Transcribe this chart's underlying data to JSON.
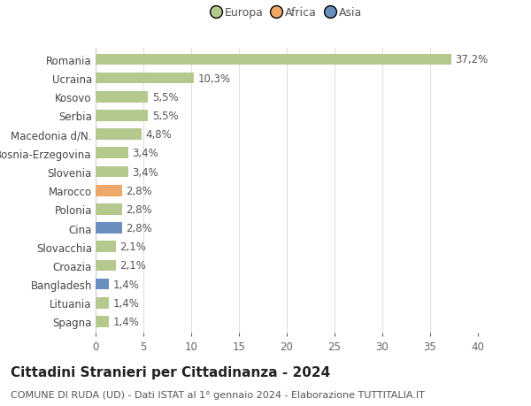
{
  "categories": [
    "Romania",
    "Ucraina",
    "Kosovo",
    "Serbia",
    "Macedonia d/N.",
    "Bosnia-Erzegovina",
    "Slovenia",
    "Marocco",
    "Polonia",
    "Cina",
    "Slovacchia",
    "Croazia",
    "Bangladesh",
    "Lituania",
    "Spagna"
  ],
  "values": [
    37.2,
    10.3,
    5.5,
    5.5,
    4.8,
    3.4,
    3.4,
    2.8,
    2.8,
    2.8,
    2.1,
    2.1,
    1.4,
    1.4,
    1.4
  ],
  "labels": [
    "37,2%",
    "10,3%",
    "5,5%",
    "5,5%",
    "4,8%",
    "3,4%",
    "3,4%",
    "2,8%",
    "2,8%",
    "2,8%",
    "2,1%",
    "2,1%",
    "1,4%",
    "1,4%",
    "1,4%"
  ],
  "colors": [
    "#b5c98e",
    "#b5c98e",
    "#b5c98e",
    "#b5c98e",
    "#b5c98e",
    "#b5c98e",
    "#b5c98e",
    "#f0a868",
    "#b5c98e",
    "#6b8ebf",
    "#b5c98e",
    "#b5c98e",
    "#6b8ebf",
    "#b5c98e",
    "#b5c98e"
  ],
  "legend_labels": [
    "Europa",
    "Africa",
    "Asia"
  ],
  "legend_colors": [
    "#b5c98e",
    "#f0a868",
    "#6b8ebf"
  ],
  "title": "Cittadini Stranieri per Cittadinanza - 2024",
  "subtitle": "COMUNE DI RUDA (UD) - Dati ISTAT al 1° gennaio 2024 - Elaborazione TUTTITALIA.IT",
  "xlim": [
    0,
    40
  ],
  "xticks": [
    0,
    5,
    10,
    15,
    20,
    25,
    30,
    35,
    40
  ],
  "bg_color": "#ffffff",
  "bar_height": 0.6,
  "grid_color": "#e0e0e0",
  "label_color": "#555555",
  "label_fontsize": 8.5,
  "ytick_fontsize": 8.5,
  "xtick_fontsize": 8.5,
  "title_fontsize": 11,
  "subtitle_fontsize": 8
}
